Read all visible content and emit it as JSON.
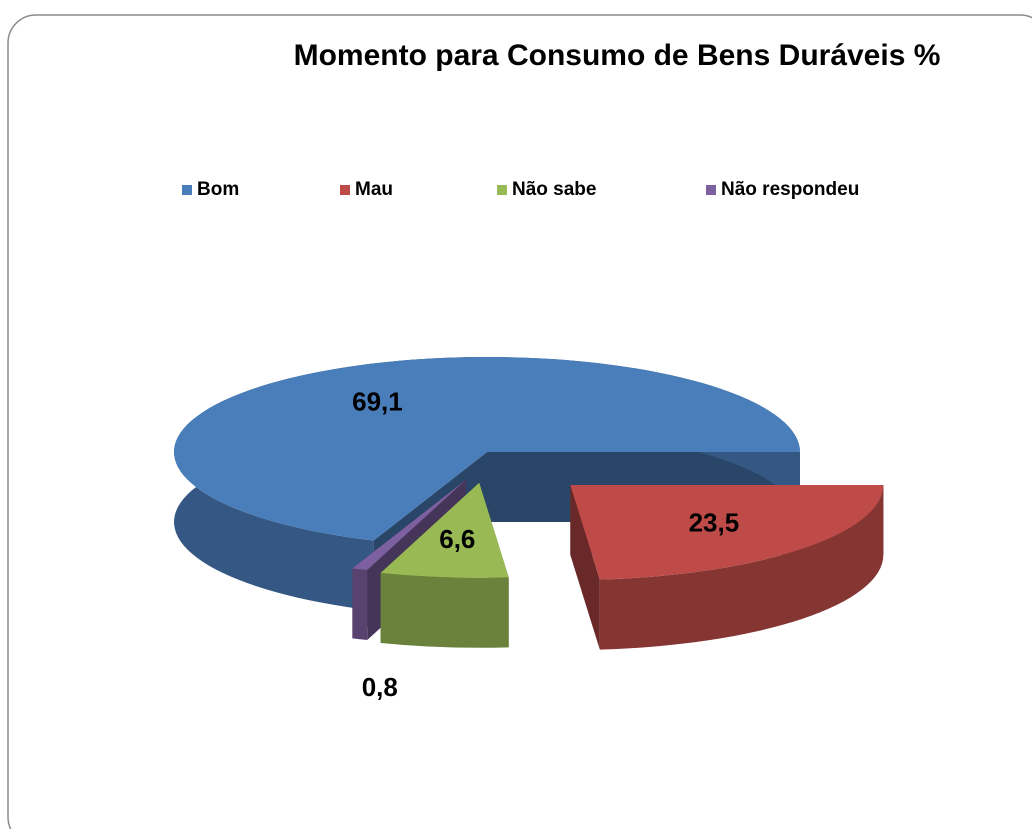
{
  "chart_data": {
    "type": "pie",
    "title": "Momento para Consumo de Bens Duráveis %",
    "categories": [
      "Bom",
      "Mau",
      "Não sabe",
      "Não respondeu"
    ],
    "values": [
      69.1,
      23.5,
      6.6,
      0.8
    ],
    "value_labels": [
      "69,1",
      "23,5",
      "6,6",
      "0,8"
    ],
    "colors": [
      "#4a7ebb",
      "#be4b48",
      "#98b954",
      "#7d60a0"
    ],
    "legend": "top",
    "three_d": true
  }
}
